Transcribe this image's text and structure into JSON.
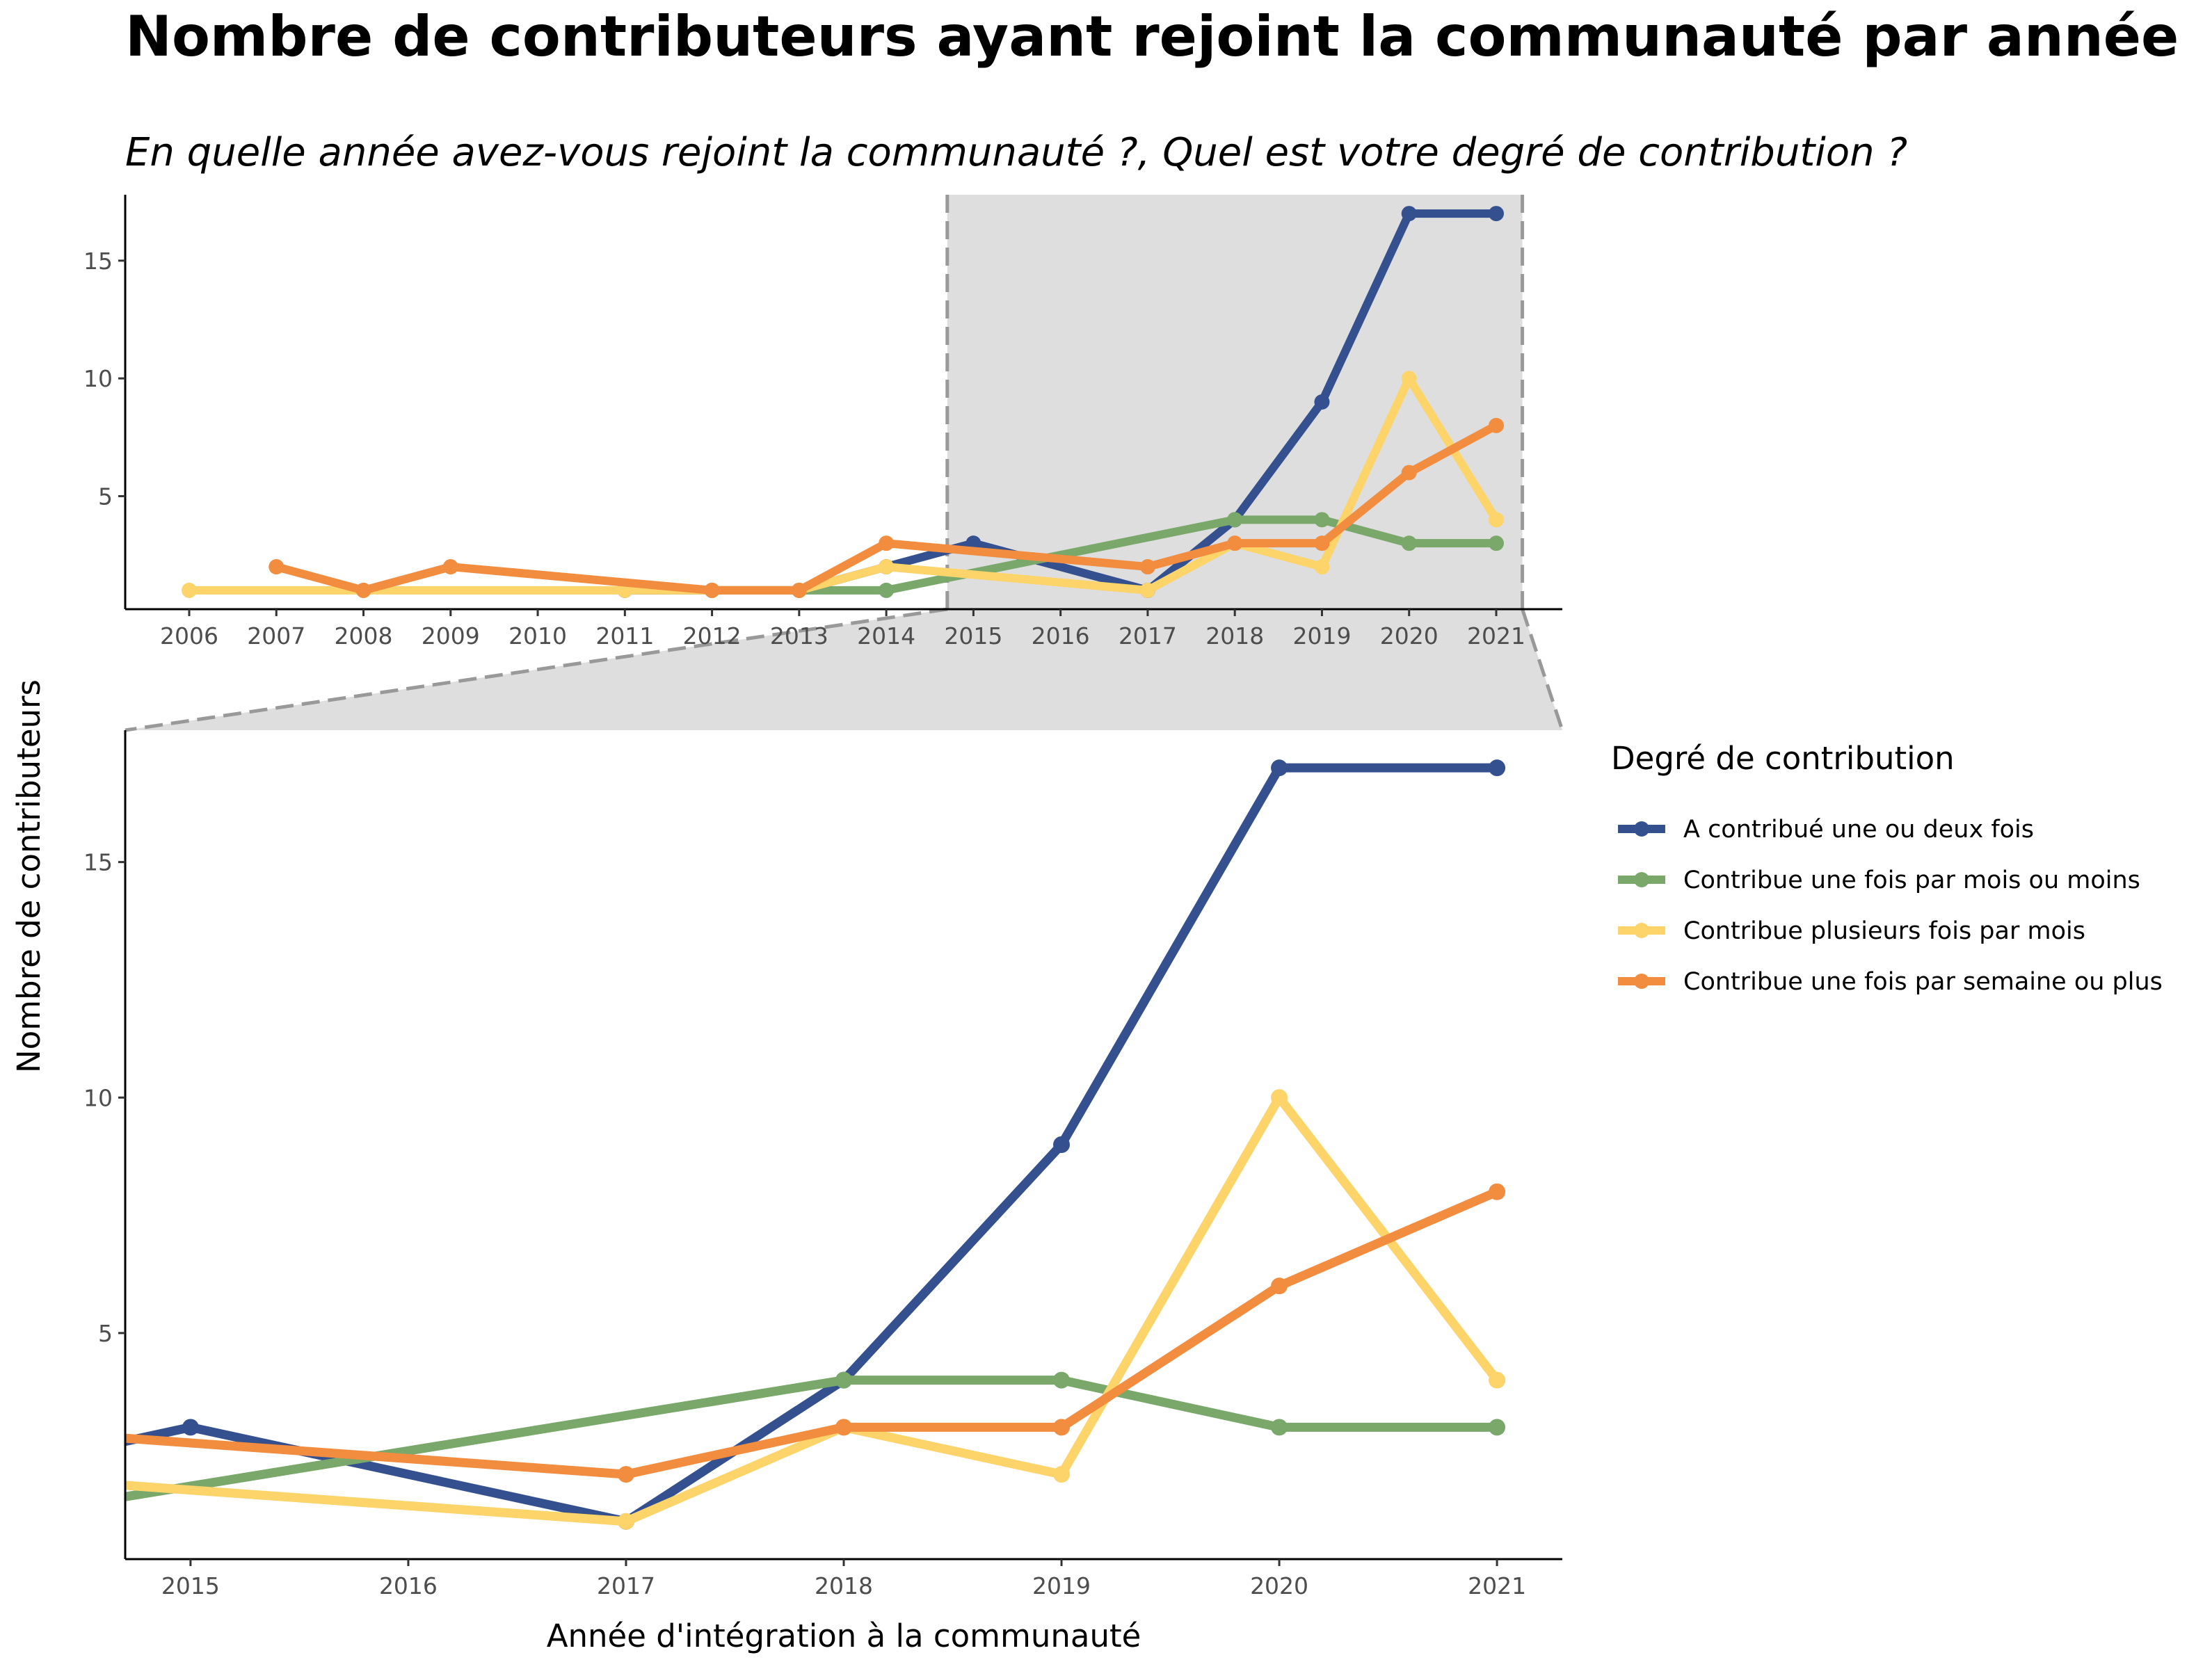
{
  "title": "Nombre de contributeurs ayant rejoint la communauté par année",
  "subtitle": "En quelle année avez-vous rejoint la communauté ?, Quel est votre degré de contribution ?",
  "colors": {
    "blue": "#34508f",
    "green": "#7aa86b",
    "yellow": "#fcd46a",
    "orange": "#f28c3f",
    "zoom_fill": "#dedede",
    "zoom_border": "#999999"
  },
  "chart_data": {
    "type": "line",
    "title": "Nombre de contributeurs ayant rejoint la communauté par année",
    "subtitle": "En quelle année avez-vous rejoint la communauté ?, Quel est votre degré de contribution ?",
    "xlabel": "Année d'intégration à la communauté",
    "ylabel": "Nombre de contributeurs",
    "legend_title": "Degré de contribution",
    "legend_position": "right",
    "grid": false,
    "overview": {
      "xlim": [
        2006,
        2021
      ],
      "ylim": [
        0.2,
        17.8
      ],
      "x_ticks": [
        2006,
        2007,
        2008,
        2009,
        2010,
        2011,
        2012,
        2013,
        2014,
        2015,
        2016,
        2017,
        2018,
        2019,
        2020,
        2021
      ],
      "y_ticks": [
        5,
        10,
        15
      ],
      "zoom_range": [
        2014.7,
        2021.3
      ]
    },
    "zoom": {
      "xlim": [
        2014.7,
        2021.3
      ],
      "ylim": [
        0.2,
        17.8
      ],
      "x_ticks": [
        2015,
        2016,
        2017,
        2018,
        2019,
        2020,
        2021
      ],
      "y_ticks": [
        5,
        10,
        15
      ]
    },
    "series": [
      {
        "name": "A contribué une ou deux fois",
        "color": "#34508f",
        "points": [
          [
            2011,
            1
          ],
          [
            2012,
            1
          ],
          [
            2013,
            1
          ],
          [
            2014,
            2
          ],
          [
            2015,
            3
          ],
          [
            2017,
            1
          ],
          [
            2018,
            4
          ],
          [
            2019,
            9
          ],
          [
            2020,
            17
          ],
          [
            2021,
            17
          ]
        ]
      },
      {
        "name": "Contribue une fois par mois ou moins",
        "color": "#7aa86b",
        "points": [
          [
            2012,
            1
          ],
          [
            2013,
            1
          ],
          [
            2014,
            1
          ],
          [
            2018,
            4
          ],
          [
            2019,
            4
          ],
          [
            2020,
            3
          ],
          [
            2021,
            3
          ]
        ]
      },
      {
        "name": "Contribue plusieurs fois par mois",
        "color": "#fcd46a",
        "points": [
          [
            2006,
            1
          ],
          [
            2008,
            1
          ],
          [
            2011,
            1
          ],
          [
            2012,
            1
          ],
          [
            2013,
            1
          ],
          [
            2014,
            2
          ],
          [
            2017,
            1
          ],
          [
            2018,
            3
          ],
          [
            2019,
            2
          ],
          [
            2020,
            10
          ],
          [
            2021,
            4
          ]
        ]
      },
      {
        "name": "Contribue une fois par semaine ou plus",
        "color": "#f28c3f",
        "points": [
          [
            2007,
            2
          ],
          [
            2008,
            1
          ],
          [
            2009,
            2
          ],
          [
            2012,
            1
          ],
          [
            2013,
            1
          ],
          [
            2014,
            3
          ],
          [
            2017,
            2
          ],
          [
            2018,
            3
          ],
          [
            2019,
            3
          ],
          [
            2020,
            6
          ],
          [
            2021,
            8
          ]
        ]
      }
    ]
  }
}
